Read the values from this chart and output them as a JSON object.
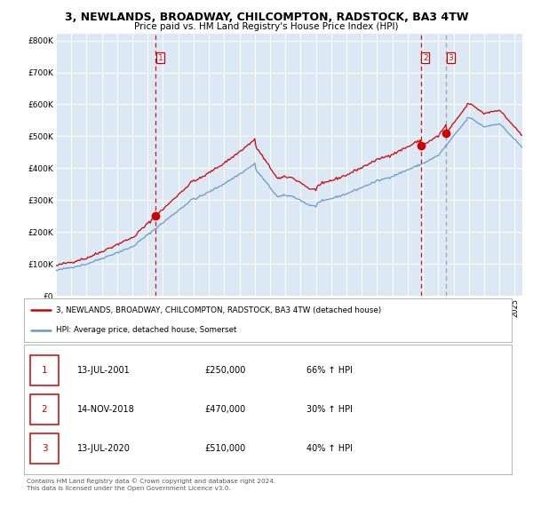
{
  "title": "3, NEWLANDS, BROADWAY, CHILCOMPTON, RADSTOCK, BA3 4TW",
  "subtitle": "Price paid vs. HM Land Registry's House Price Index (HPI)",
  "hpi_label": "HPI: Average price, detached house, Somerset",
  "property_label": "3, NEWLANDS, BROADWAY, CHILCOMPTON, RADSTOCK, BA3 4TW (detached house)",
  "background_color": "#dce9f5",
  "red_line_color": "#cc0000",
  "blue_line_color": "#6699cc",
  "sale1_date": "13-JUL-2001",
  "sale1_price": 250000,
  "sale1_hpi": "66% ↑ HPI",
  "sale1_year": 2001.53,
  "sale2_date": "14-NOV-2018",
  "sale2_price": 470000,
  "sale2_hpi": "30% ↑ HPI",
  "sale2_year": 2018.87,
  "sale3_date": "13-JUL-2020",
  "sale3_price": 510000,
  "sale3_hpi": "40% ↑ HPI",
  "sale3_year": 2020.53,
  "ylim": [
    0,
    820000
  ],
  "xlim_start": 1995.0,
  "xlim_end": 2025.5,
  "footer": "Contains HM Land Registry data © Crown copyright and database right 2024.\nThis data is licensed under the Open Government Licence v3.0."
}
